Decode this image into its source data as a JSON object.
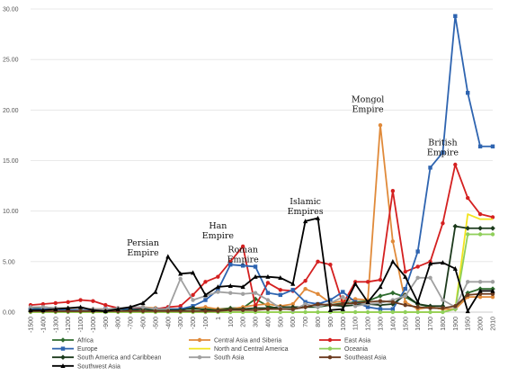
{
  "chart_data": {
    "type": "line",
    "title": "",
    "xlabel": "",
    "ylabel": "",
    "ylim": [
      0,
      30
    ],
    "yticks": [
      "0.00",
      "5.00",
      "10.00",
      "15.00",
      "20.00",
      "25.00",
      "30.00"
    ],
    "grid": "horizontal",
    "legend_position": "bottom",
    "categories": [
      "-1500",
      "-1400",
      "-1300",
      "-1200",
      "-1100",
      "-1000",
      "-900",
      "-800",
      "-700",
      "-600",
      "-500",
      "-400",
      "-300",
      "-200",
      "-100",
      "1",
      "100",
      "200",
      "300",
      "400",
      "500",
      "600",
      "700",
      "800",
      "900",
      "1000",
      "1100",
      "1200",
      "1300",
      "1400",
      "1500",
      "1600",
      "1700",
      "1800",
      "1900",
      "1950",
      "2000",
      "2010"
    ],
    "annotations": [
      {
        "lines": [
          "Persian",
          "Empire"
        ],
        "x": "-600",
        "y": 6.6
      },
      {
        "lines": [
          "Han",
          "Empire"
        ],
        "x": "1",
        "y": 8.3
      },
      {
        "lines": [
          "Roman",
          "Empire"
        ],
        "x": "200",
        "y": 5.9
      },
      {
        "lines": [
          "Islamic",
          "Empires"
        ],
        "x": "700",
        "y": 10.7
      },
      {
        "lines": [
          "Mongol",
          "Empire"
        ],
        "x": "1200",
        "y": 20.8
      },
      {
        "lines": [
          "British",
          "Empire"
        ],
        "x": "1800",
        "y": 16.5
      }
    ],
    "series": [
      {
        "name": "Africa",
        "color": "#2e6b2e",
        "marker": "diamond",
        "values": [
          0.3,
          0.5,
          0.4,
          0.4,
          0.3,
          0.3,
          0.3,
          0.3,
          0.3,
          0.3,
          0.3,
          0.3,
          0.3,
          0.3,
          0.3,
          0.3,
          0.4,
          0.4,
          1.3,
          0.6,
          0.3,
          0.3,
          0.5,
          0.5,
          0.7,
          0.9,
          1.0,
          1.1,
          1.6,
          1.9,
          1.5,
          0.8,
          0.5,
          0.3,
          0.3,
          1.9,
          2.3,
          2.3
        ]
      },
      {
        "name": "Central Asia and Siberia",
        "color": "#e08a3a",
        "marker": "circle",
        "values": [
          0.2,
          0.2,
          0.3,
          0.3,
          0.3,
          0.3,
          0.3,
          0.3,
          0.4,
          0.5,
          0.4,
          0.3,
          0.3,
          0.4,
          0.5,
          0.3,
          0.3,
          0.5,
          0.7,
          0.8,
          0.6,
          0.8,
          2.3,
          1.8,
          0.9,
          1.1,
          1.3,
          1.2,
          18.5,
          7.0,
          1.0,
          0.3,
          0.5,
          0.3,
          0.3,
          1.5,
          1.5,
          1.5
        ]
      },
      {
        "name": "East Asia",
        "color": "#d42020",
        "marker": "circle",
        "values": [
          0.7,
          0.8,
          0.9,
          1.0,
          1.2,
          1.1,
          0.7,
          0.4,
          0.3,
          0.4,
          0.3,
          0.5,
          0.6,
          1.7,
          3.0,
          3.5,
          5.0,
          6.5,
          0.6,
          2.9,
          2.2,
          2.1,
          3.1,
          5.0,
          4.7,
          0.8,
          3.0,
          3.0,
          3.2,
          12.0,
          4.0,
          4.5,
          5.0,
          8.8,
          14.6,
          11.3,
          9.7,
          9.4
        ]
      },
      {
        "name": "Europe",
        "color": "#2e64b0",
        "marker": "square",
        "values": [
          0.3,
          0.3,
          0.3,
          0.2,
          0.2,
          0.2,
          0.3,
          0.3,
          0.3,
          0.3,
          0.3,
          0.3,
          0.3,
          0.6,
          1.2,
          2.2,
          4.7,
          4.6,
          4.5,
          1.9,
          1.7,
          2.2,
          1.0,
          0.8,
          1.2,
          2.0,
          1.0,
          0.5,
          0.3,
          0.3,
          2.3,
          6.0,
          14.3,
          15.8,
          29.3,
          21.7,
          16.4,
          16.4
        ]
      },
      {
        "name": "North and Central America",
        "color": "#f2e41e",
        "marker": "none",
        "values": [
          0,
          0,
          0,
          0,
          0,
          0,
          0,
          0,
          0,
          0,
          0,
          0,
          0,
          0,
          0,
          0,
          0,
          0,
          0,
          0,
          0,
          0,
          0,
          0,
          0,
          0,
          0,
          0,
          0,
          0,
          0,
          0,
          0,
          0,
          0.3,
          9.7,
          9.2,
          9.2
        ]
      },
      {
        "name": "Oceania",
        "color": "#8fcf5a",
        "marker": "circle",
        "values": [
          0,
          0,
          0,
          0,
          0,
          0,
          0,
          0,
          0,
          0,
          0,
          0,
          0,
          0,
          0,
          0,
          0,
          0,
          0,
          0,
          0,
          0,
          0,
          0,
          0,
          0,
          0,
          0,
          0,
          0,
          0,
          0,
          0,
          0,
          0.3,
          7.7,
          7.7,
          7.7
        ]
      },
      {
        "name": "South America and Caribbean",
        "color": "#1c3a1c",
        "marker": "diamond",
        "values": [
          0.1,
          0.1,
          0.1,
          0.1,
          0.1,
          0.1,
          0.1,
          0.1,
          0.2,
          0.3,
          0.2,
          0.2,
          0.2,
          0.4,
          0.2,
          0.2,
          0.3,
          0.3,
          0.4,
          0.4,
          0.5,
          0.5,
          0.5,
          0.6,
          0.7,
          0.6,
          0.7,
          0.8,
          0.7,
          0.8,
          1.7,
          0.8,
          0.6,
          0.6,
          8.5,
          8.3,
          8.3,
          8.3
        ]
      },
      {
        "name": "South Asia",
        "color": "#a0a0a0",
        "marker": "circle",
        "values": [
          0.5,
          0.5,
          0.4,
          0.4,
          0.3,
          0.3,
          0.3,
          0.4,
          0.5,
          0.5,
          0.3,
          0.3,
          3.3,
          1.2,
          1.6,
          2.0,
          1.9,
          1.8,
          1.9,
          1.2,
          0.4,
          0.2,
          0.8,
          0.5,
          0.9,
          1.5,
          0.6,
          0.8,
          0.9,
          1.2,
          1.6,
          3.4,
          3.4,
          1.2,
          0.5,
          3.0,
          3.0,
          3.0
        ]
      },
      {
        "name": "Southeast Asia",
        "color": "#6b3a1e",
        "marker": "circle",
        "values": [
          0.1,
          0.1,
          0.1,
          0.1,
          0.1,
          0.1,
          0.1,
          0.1,
          0.1,
          0.1,
          0.1,
          0.1,
          0.1,
          0.1,
          0.1,
          0.1,
          0.2,
          0.2,
          0.2,
          0.3,
          0.3,
          0.3,
          0.5,
          0.8,
          0.7,
          0.8,
          0.9,
          1.0,
          1.1,
          1.0,
          0.7,
          0.5,
          0.4,
          0.4,
          0.6,
          1.7,
          1.8,
          1.8
        ]
      },
      {
        "name": "Southwest Asia",
        "color": "#000000",
        "marker": "triangle",
        "values": [
          0.2,
          0.2,
          0.3,
          0.4,
          0.5,
          0.2,
          0.1,
          0.3,
          0.5,
          0.9,
          2.0,
          5.5,
          3.8,
          3.9,
          1.7,
          2.5,
          2.6,
          2.5,
          3.5,
          3.5,
          3.4,
          2.8,
          9.0,
          9.3,
          0.2,
          0.3,
          2.8,
          1.0,
          2.5,
          5.0,
          3.5,
          1.0,
          4.8,
          4.9,
          4.3,
          0.1,
          2.1,
          2.1
        ]
      }
    ]
  }
}
